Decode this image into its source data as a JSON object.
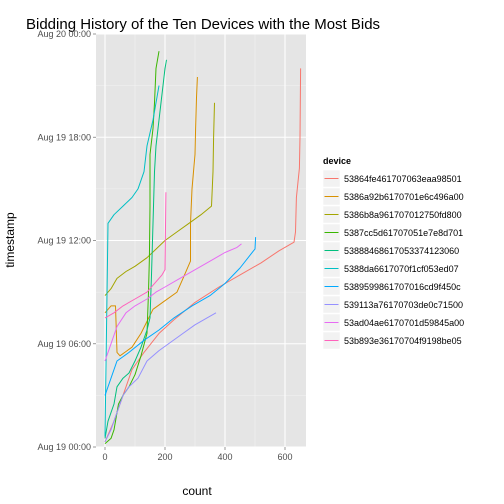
{
  "chart_data": {
    "type": "line",
    "title": "Bidding History of the Ten Devices with the Most Bids",
    "xlabel": "count",
    "ylabel": "timestamp",
    "xlim": [
      -30,
      670
    ],
    "ylim": [
      0,
      24
    ],
    "x_ticks": [
      0,
      200,
      400,
      600
    ],
    "y_ticks": [
      {
        "value": 0,
        "label": "Aug 19 00:00"
      },
      {
        "value": 6,
        "label": "Aug 19 06:00"
      },
      {
        "value": 12,
        "label": "Aug 19 12:00"
      },
      {
        "value": 18,
        "label": "Aug 19 18:00"
      },
      {
        "value": 24,
        "label": "Aug 20 00:00"
      }
    ],
    "grid": true,
    "legend": {
      "title": "device",
      "placement": "right"
    },
    "series": [
      {
        "name": "53864fe461707063eaa98501",
        "color": "#F8766D",
        "points": [
          [
            0,
            0.3
          ],
          [
            30,
            1.5
          ],
          [
            60,
            3.0
          ],
          [
            90,
            4.5
          ],
          [
            130,
            5.5
          ],
          [
            180,
            6.6
          ],
          [
            230,
            7.4
          ],
          [
            300,
            8.4
          ],
          [
            380,
            9.3
          ],
          [
            450,
            10.0
          ],
          [
            520,
            10.7
          ],
          [
            580,
            11.4
          ],
          [
            630,
            11.9
          ],
          [
            635,
            12.5
          ],
          [
            638,
            14.5
          ],
          [
            648,
            16.2
          ],
          [
            650,
            18.0
          ],
          [
            652,
            22.0
          ]
        ]
      },
      {
        "name": "5386a92b6170701e6c496a00",
        "color": "#D89000",
        "points": [
          [
            0,
            7.8
          ],
          [
            20,
            8.2
          ],
          [
            35,
            8.2
          ],
          [
            40,
            5.5
          ],
          [
            50,
            5.3
          ],
          [
            90,
            5.8
          ],
          [
            120,
            6.6
          ],
          [
            140,
            7.3
          ],
          [
            160,
            8.0
          ],
          [
            200,
            8.5
          ],
          [
            240,
            9.0
          ],
          [
            260,
            9.8
          ],
          [
            285,
            10.8
          ],
          [
            285,
            13.0
          ],
          [
            290,
            15.0
          ],
          [
            295,
            16.0
          ],
          [
            300,
            17.0
          ],
          [
            302,
            18.5
          ],
          [
            305,
            20.3
          ],
          [
            308,
            21.5
          ]
        ]
      },
      {
        "name": "5386b8a961707012750fd800",
        "color": "#A3A500",
        "points": [
          [
            0,
            8.8
          ],
          [
            20,
            9.2
          ],
          [
            40,
            9.8
          ],
          [
            70,
            10.2
          ],
          [
            100,
            10.5
          ],
          [
            140,
            11.0
          ],
          [
            170,
            11.5
          ],
          [
            200,
            12.0
          ],
          [
            240,
            12.5
          ],
          [
            280,
            13.0
          ],
          [
            320,
            13.5
          ],
          [
            355,
            14.0
          ],
          [
            360,
            16.0
          ],
          [
            362,
            18.0
          ],
          [
            365,
            20.0
          ]
        ]
      },
      {
        "name": "5387cc5d61707051e7e8d701",
        "color": "#39B600",
        "points": [
          [
            0,
            0.2
          ],
          [
            20,
            0.5
          ],
          [
            30,
            1.0
          ],
          [
            45,
            2.5
          ],
          [
            60,
            3.0
          ],
          [
            80,
            3.5
          ],
          [
            100,
            4.2
          ],
          [
            120,
            5.3
          ],
          [
            140,
            6.6
          ],
          [
            145,
            9.0
          ],
          [
            148,
            11.0
          ],
          [
            150,
            14.0
          ],
          [
            150,
            17.0
          ],
          [
            160,
            18.5
          ],
          [
            165,
            20.0
          ],
          [
            170,
            22.0
          ],
          [
            180,
            23.0
          ]
        ]
      },
      {
        "name": "53888468617053374123060",
        "color": "#00BF7D",
        "points": [
          [
            0,
            0.5
          ],
          [
            10,
            1.5
          ],
          [
            20,
            2.0
          ],
          [
            30,
            2.5
          ],
          [
            40,
            3.5
          ],
          [
            60,
            4.0
          ],
          [
            80,
            4.3
          ],
          [
            100,
            5.0
          ],
          [
            120,
            5.8
          ],
          [
            140,
            6.8
          ],
          [
            150,
            7.5
          ],
          [
            155,
            10.0
          ],
          [
            160,
            13.0
          ],
          [
            165,
            16.0
          ],
          [
            170,
            17.5
          ],
          [
            180,
            19.0
          ],
          [
            190,
            20.5
          ],
          [
            200,
            22.0
          ],
          [
            205,
            22.5
          ]
        ]
      },
      {
        "name": "5388da6617070f1cf053ed07",
        "color": "#00BFC4",
        "points": [
          [
            0,
            0.6
          ],
          [
            10,
            13.0
          ],
          [
            30,
            13.5
          ],
          [
            60,
            14.0
          ],
          [
            90,
            14.5
          ],
          [
            110,
            15.0
          ],
          [
            120,
            15.5
          ],
          [
            130,
            16.0
          ],
          [
            140,
            17.5
          ],
          [
            160,
            19.0
          ],
          [
            170,
            20.0
          ],
          [
            180,
            21.0
          ]
        ]
      },
      {
        "name": "5389599861707016cd9f450c",
        "color": "#00A9FF",
        "points": [
          [
            0,
            3.0
          ],
          [
            20,
            4.0
          ],
          [
            40,
            5.0
          ],
          [
            80,
            5.5
          ],
          [
            130,
            6.2
          ],
          [
            180,
            6.8
          ],
          [
            230,
            7.5
          ],
          [
            290,
            8.2
          ],
          [
            350,
            8.8
          ],
          [
            400,
            9.5
          ],
          [
            450,
            10.4
          ],
          [
            495,
            11.4
          ],
          [
            500,
            11.5
          ],
          [
            502,
            12.2
          ]
        ]
      },
      {
        "name": "539113a76170703de0c71500",
        "color": "#9590FF",
        "points": [
          [
            0,
            0.3
          ],
          [
            20,
            1.0
          ],
          [
            40,
            2.0
          ],
          [
            60,
            3.0
          ],
          [
            80,
            3.5
          ],
          [
            110,
            4.0
          ],
          [
            140,
            5.0
          ],
          [
            180,
            5.6
          ],
          [
            220,
            6.1
          ],
          [
            260,
            6.6
          ],
          [
            300,
            7.1
          ],
          [
            340,
            7.5
          ],
          [
            370,
            7.8
          ]
        ]
      },
      {
        "name": "53ad04ae6170701d59845a00",
        "color": "#E76BF3",
        "points": [
          [
            0,
            5.0
          ],
          [
            20,
            6.0
          ],
          [
            40,
            7.0
          ],
          [
            70,
            7.8
          ],
          [
            100,
            8.2
          ],
          [
            140,
            8.6
          ],
          [
            170,
            9.0
          ],
          [
            200,
            9.3
          ],
          [
            240,
            9.7
          ],
          [
            280,
            10.1
          ],
          [
            320,
            10.5
          ],
          [
            360,
            10.9
          ],
          [
            400,
            11.3
          ],
          [
            440,
            11.6
          ],
          [
            455,
            11.8
          ]
        ]
      },
      {
        "name": "53b893e36170704f9198be05",
        "color": "#FF62BC",
        "points": [
          [
            0,
            7.5
          ],
          [
            30,
            7.8
          ],
          [
            60,
            8.2
          ],
          [
            100,
            8.6
          ],
          [
            140,
            9.0
          ],
          [
            170,
            9.6
          ],
          [
            190,
            10.0
          ],
          [
            200,
            10.3
          ],
          [
            203,
            14.8
          ]
        ]
      }
    ]
  }
}
